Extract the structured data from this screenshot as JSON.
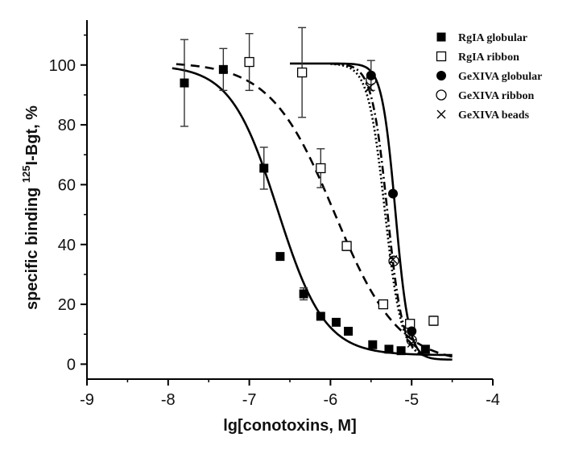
{
  "chart_data": {
    "type": "scatter",
    "xlabel": "lg[conotoxins, M]",
    "ylabel_prefix": "specific binding ",
    "ylabel_sup": "125",
    "ylabel_suffix": "I-Bgt, %",
    "xlim": [
      -9,
      -4
    ],
    "ylim": [
      -5,
      115
    ],
    "x_ticks": [
      -9,
      -8,
      -7,
      -6,
      -5,
      -4
    ],
    "x_tick_labels": [
      "-9",
      "-8",
      "-7",
      "-6",
      "-5",
      "-4"
    ],
    "y_ticks": [
      0,
      20,
      40,
      60,
      80,
      100
    ],
    "y_tick_labels": [
      "0",
      "20",
      "40",
      "60",
      "80",
      "100"
    ],
    "legend_position": "top-right",
    "series": [
      {
        "name": "RgIA globular",
        "marker": "filled-square",
        "points": [
          {
            "x": -7.8,
            "y": 94,
            "err": 14.5
          },
          {
            "x": -7.32,
            "y": 98.5,
            "err": 7
          },
          {
            "x": -6.82,
            "y": 65.5,
            "err": 7
          },
          {
            "x": -6.62,
            "y": 36
          },
          {
            "x": -6.33,
            "y": 23.5,
            "err": 2
          },
          {
            "x": -6.12,
            "y": 16
          },
          {
            "x": -5.93,
            "y": 14
          },
          {
            "x": -5.78,
            "y": 11
          },
          {
            "x": -5.48,
            "y": 6.5
          },
          {
            "x": -5.28,
            "y": 5
          },
          {
            "x": -5.13,
            "y": 4.5
          },
          {
            "x": -4.83,
            "y": 5
          }
        ],
        "fit": {
          "line_style": "solid",
          "top": 100,
          "bottom": 3,
          "logIC50": -6.65,
          "hill": 1.5,
          "x_range": [
            -7.95,
            -4.5
          ]
        }
      },
      {
        "name": "RgIA ribbon",
        "marker": "open-square",
        "points": [
          {
            "x": -7.0,
            "y": 101,
            "err": 9.5
          },
          {
            "x": -6.35,
            "y": 97.5,
            "err": 15
          },
          {
            "x": -6.12,
            "y": 65.5,
            "err": 6.5
          },
          {
            "x": -5.8,
            "y": 39.5,
            "err": 1.5
          },
          {
            "x": -5.35,
            "y": 20
          },
          {
            "x": -5.02,
            "y": 13.5
          },
          {
            "x": -4.73,
            "y": 14.5,
            "err": 1.5
          }
        ],
        "fit": {
          "line_style": "dashed",
          "top": 101,
          "bottom": 0,
          "logIC50": -5.95,
          "hill": 1.1,
          "x_range": [
            -7.9,
            -4.5
          ]
        }
      },
      {
        "name": "GeXIVA globular",
        "marker": "filled-circle",
        "points": [
          {
            "x": -5.5,
            "y": 96.5,
            "err": 5
          },
          {
            "x": -5.23,
            "y": 57
          },
          {
            "x": -5.0,
            "y": 11
          }
        ],
        "fit": {
          "line_style": "solid",
          "top": 100.5,
          "bottom": 1.5,
          "logIC50": -5.2,
          "hill": 5.2,
          "x_range": [
            -6.5,
            -4.5
          ]
        }
      },
      {
        "name": "GeXIVA ribbon",
        "marker": "open-circle",
        "points": [
          {
            "x": -5.5,
            "y": 95
          },
          {
            "x": -5.22,
            "y": 34.5
          },
          {
            "x": -5.0,
            "y": 8
          }
        ],
        "fit": {
          "line_style": "dashdot",
          "top": 100.5,
          "bottom": 2,
          "logIC50": -5.3,
          "hill": 4.5,
          "x_range": [
            -6.0,
            -4.8
          ]
        }
      },
      {
        "name": "GeXIVA beads",
        "marker": "cross",
        "points": [
          {
            "x": -5.52,
            "y": 92.5
          },
          {
            "x": -5.23,
            "y": 35
          },
          {
            "x": -5.0,
            "y": 7
          }
        ],
        "fit": {
          "line_style": "dotted",
          "top": 100.5,
          "bottom": 2,
          "logIC50": -5.33,
          "hill": 4.2,
          "x_range": [
            -6.0,
            -4.8
          ]
        }
      }
    ]
  }
}
